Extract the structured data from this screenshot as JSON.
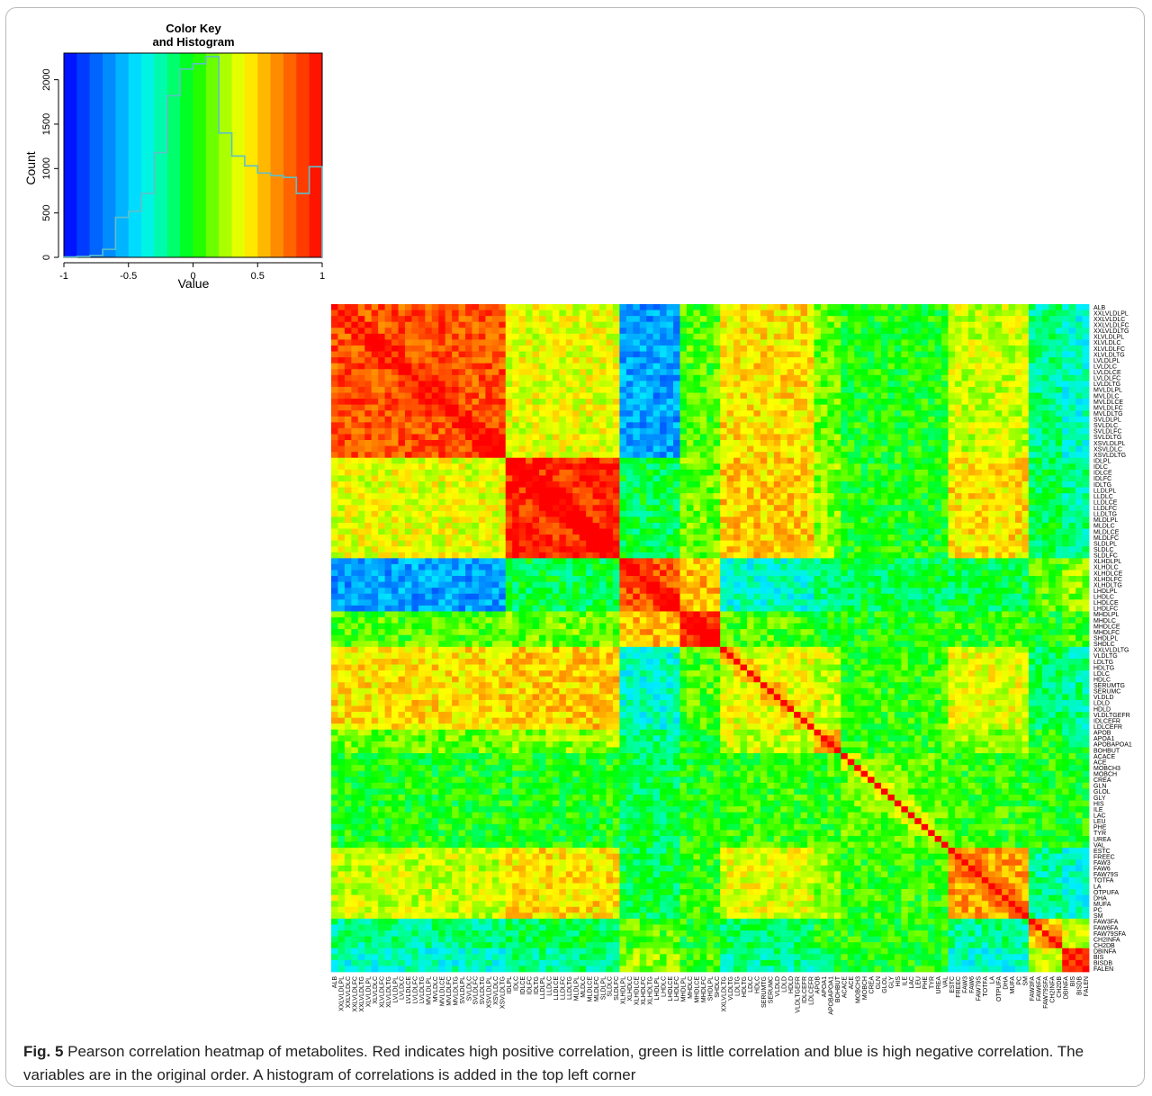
{
  "figure": {
    "caption_label": "Fig. 5",
    "caption_text": "Pearson correlation heatmap of metabolites. Red indicates high positive correlation, green is little correlation and blue is high negative correlation. The variables are in the original order. A histogram of correlations is added in the top left corner"
  },
  "chart_data": [
    {
      "type": "bar",
      "title": "Color Key\nand Histogram",
      "xlabel": "Value",
      "ylabel": "Count",
      "xlim": [
        -1,
        1
      ],
      "ylim": [
        0,
        2300
      ],
      "x_ticks": [
        "-1",
        "-0.5",
        "0",
        "0.5",
        "1"
      ],
      "y_ticks": [
        "0",
        "500",
        "1000",
        "1500",
        "2000"
      ],
      "bin_edges": [
        -1,
        -0.9,
        -0.8,
        -0.7,
        -0.6,
        -0.5,
        -0.4,
        -0.3,
        -0.2,
        -0.1,
        0,
        0.1,
        0.2,
        0.3,
        0.4,
        0.5,
        0.6,
        0.7,
        0.8,
        0.9,
        1
      ],
      "counts": [
        5,
        10,
        20,
        90,
        450,
        520,
        720,
        1180,
        1820,
        2120,
        2180,
        2260,
        1400,
        1140,
        1030,
        950,
        920,
        900,
        720,
        1020
      ],
      "histogram_color": "#5fbfc8",
      "color_scale": [
        "#0000ff",
        "#0050ff",
        "#00a0ff",
        "#00f0ff",
        "#00ff90",
        "#00ff00",
        "#90ff00",
        "#ffff00",
        "#ffa000",
        "#ff5000",
        "#ff0000"
      ]
    },
    {
      "type": "heatmap",
      "value_range": [
        -1,
        1
      ],
      "colors": {
        "high_positive": "#ff0000",
        "none": "#00ff00",
        "high_negative": "#0000ff"
      },
      "variables": [
        "ALB",
        "XXLVLDLPL",
        "XXLVLDLC",
        "XXLVLDLFC",
        "XXLVLDLTG",
        "XLVLDLPL",
        "XLVLDLC",
        "XLVLDLFC",
        "XLVLDLTG",
        "LVLDLPL",
        "LVLDLC",
        "LVLDLCE",
        "LVLDLFC",
        "LVLDLTG",
        "MVLDLPL",
        "MVLDLC",
        "MVLDLCE",
        "MVLDLFC",
        "MVLDLTG",
        "SVLDLPL",
        "SVLDLC",
        "SVLDLFC",
        "SVLDLTG",
        "XSVLDLPL",
        "XSVLDLC",
        "XSVLDLTG",
        "IDLPL",
        "IDLC",
        "IDLCE",
        "IDLFC",
        "IDLTG",
        "LLDLPL",
        "LLDLC",
        "LLDLCE",
        "LLDLFC",
        "LLDLTG",
        "MLDLPL",
        "MLDLC",
        "MLDLCE",
        "MLDLFC",
        "SLDLPL",
        "SLDLC",
        "SLDLFC",
        "XLHDLPL",
        "XLHDLC",
        "XLHDLCE",
        "XLHDLFC",
        "XLHDLTG",
        "LHDLPL",
        "LHDLC",
        "LHDLCE",
        "LHDLFC",
        "MHDLPL",
        "MHDLC",
        "MHDLCE",
        "MHDLFC",
        "SHDLPL",
        "SHDLC",
        "XXLVLDLTG",
        "VLDLTG",
        "LDLTG",
        "HDLTG",
        "LDLC",
        "HDLC",
        "SERUMTG",
        "SERUMC",
        "VLDLD",
        "LDLD",
        "HDLD",
        "VLDLTGEFR",
        "IDLCEFR",
        "LDLCEFR",
        "APOB",
        "APOA1",
        "APOBAPOA1",
        "BOHBUT",
        "ACACE",
        "ACE",
        "MOBCH3",
        "MOBCH",
        "CREA",
        "GLN",
        "GLOL",
        "GLY",
        "HIS",
        "ILE",
        "LAC",
        "LEU",
        "PHE",
        "TYR",
        "UREA",
        "VAL",
        "ESTC",
        "FREEC",
        "FAW3",
        "FAW6",
        "FAW79S",
        "TOTFA",
        "LA",
        "OTPUFA",
        "DHA",
        "MUFA",
        "PC",
        "SM",
        "FAW3FA",
        "FAW6FA",
        "FAW79SFA",
        "CH2INFA",
        "CH2DB",
        "DBINFA",
        "BIS",
        "BISDB",
        "FALEN"
      ]
    }
  ]
}
